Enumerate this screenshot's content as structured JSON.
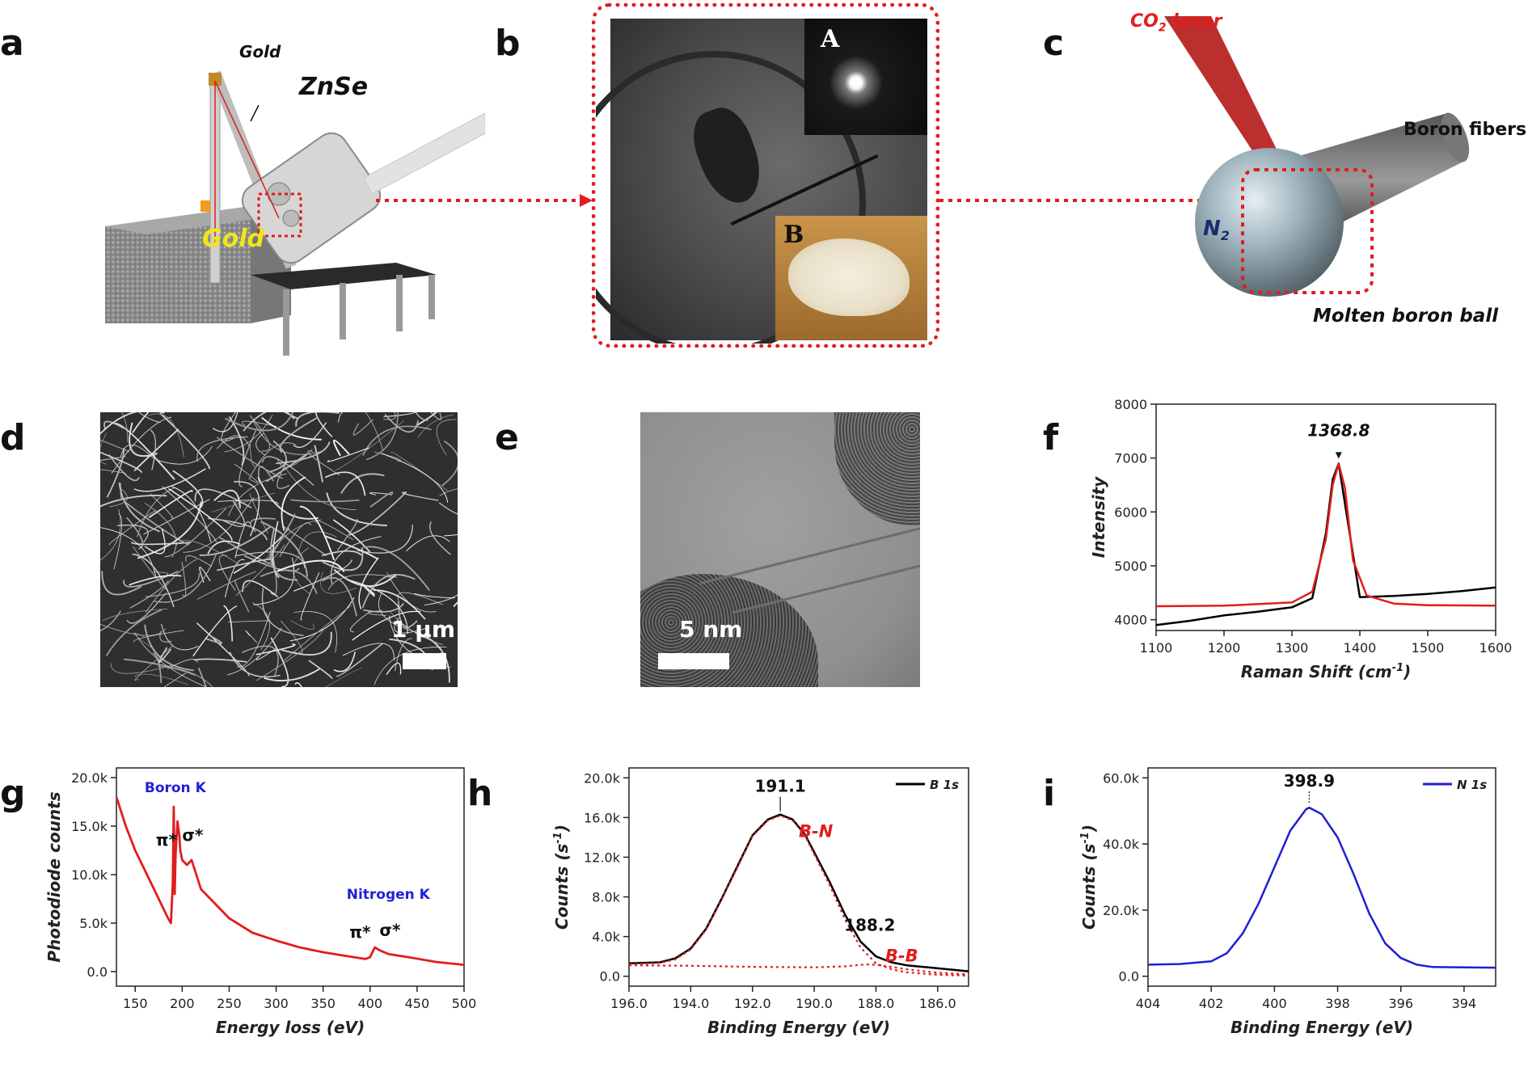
{
  "panels": {
    "a": {
      "label": "a",
      "gold_top": "Gold",
      "gold_box": "Gold",
      "znse": "ZnSe"
    },
    "b": {
      "label": "b",
      "inset_a": "A",
      "inset_b": "B"
    },
    "c": {
      "label": "c",
      "laser": "CO",
      "laser_sub": "2",
      "laser_tail": " laser",
      "n2": "N",
      "n2_sub": "2",
      "fibers": "Boron fibers",
      "ball": "Molten boron ball"
    },
    "d": {
      "label": "d",
      "scale": "1 µm"
    },
    "e": {
      "label": "e",
      "scale": "5 nm"
    },
    "f": {
      "label": "f"
    },
    "g": {
      "label": "g",
      "boron": "Boron K",
      "nitrogen": "Nitrogen K",
      "pi1": "π*",
      "sigma1": "σ*",
      "pi2": "π*",
      "sigma2": "σ*"
    },
    "h": {
      "label": "h",
      "peak1": "191.1",
      "peak1_bond": "B-N",
      "peak2": "188.2",
      "peak2_bond": "B-B"
    },
    "i": {
      "label": "i",
      "peak1": "398.9"
    }
  },
  "chart_data": [
    {
      "id": "f",
      "type": "line",
      "xlabel": "Raman Shift (cm-1)",
      "xlabel_main": "Raman Shift (cm",
      "xlabel_sup": "-1",
      "xlabel_close": ")",
      "ylabel": "Intensity",
      "xlim": [
        1100,
        1600
      ],
      "ylim": [
        3800,
        8000
      ],
      "xticks": [
        "1100",
        "1200",
        "1300",
        "1400",
        "1500",
        "1600"
      ],
      "yticks": [
        "4000",
        "5000",
        "6000",
        "7000",
        "8000"
      ],
      "annotation": "1368.8",
      "series": [
        {
          "color": "#000000",
          "x": [
            1100,
            1150,
            1200,
            1250,
            1300,
            1330,
            1350,
            1360,
            1368.8,
            1380,
            1400,
            1450,
            1500,
            1550,
            1600
          ],
          "y": [
            3900,
            3980,
            4080,
            4150,
            4230,
            4400,
            5600,
            6600,
            6900,
            6000,
            4420,
            4440,
            4480,
            4530,
            4600
          ]
        },
        {
          "color": "#e11d1d",
          "x": [
            1100,
            1200,
            1300,
            1330,
            1350,
            1360,
            1368.8,
            1378,
            1390,
            1410,
            1450,
            1500,
            1600
          ],
          "y": [
            4250,
            4260,
            4320,
            4520,
            5500,
            6500,
            6900,
            6450,
            5100,
            4450,
            4300,
            4270,
            4260
          ]
        }
      ]
    },
    {
      "id": "g",
      "type": "line",
      "xlabel": "Energy loss (eV)",
      "ylabel": "Photodiode counts",
      "xlim": [
        130,
        500
      ],
      "ylim": [
        -1500,
        21000
      ],
      "xticks": [
        "150",
        "200",
        "250",
        "300",
        "350",
        "400",
        "450",
        "500"
      ],
      "yticks": [
        "0.0",
        "5.0k",
        "10.0k",
        "15.0k",
        "20.0k"
      ],
      "series": [
        {
          "color": "#e11d1d",
          "x": [
            130,
            140,
            150,
            160,
            170,
            180,
            185,
            188,
            190,
            191,
            192,
            193,
            195,
            197,
            198,
            200,
            205,
            210,
            215,
            220,
            230,
            250,
            275,
            300,
            325,
            350,
            375,
            395,
            400,
            405,
            410,
            420,
            440,
            470,
            500
          ],
          "y": [
            18000,
            15000,
            12500,
            10500,
            8500,
            6500,
            5500,
            5000,
            9000,
            17000,
            8000,
            12000,
            15500,
            14000,
            12500,
            11500,
            11000,
            11500,
            10000,
            8500,
            7500,
            5500,
            4000,
            3200,
            2500,
            2000,
            1600,
            1300,
            1500,
            2500,
            2200,
            1800,
            1500,
            1000,
            700
          ]
        }
      ]
    },
    {
      "id": "h",
      "type": "line",
      "xlabel": "Binding Energy (eV)",
      "ylabel": "Counts (s-1)",
      "ylabel_main": "Counts (s",
      "ylabel_sup": "-1",
      "ylabel_close": ")",
      "xlim": [
        196,
        185
      ],
      "ylim": [
        -1000,
        21000
      ],
      "xticks": [
        "196.0",
        "194.0",
        "192.0",
        "190.0",
        "188.0",
        "186.0"
      ],
      "yticks": [
        "0.0",
        "4.0k",
        "8.0k",
        "12.0k",
        "16.0k",
        "20.0k"
      ],
      "legend": "B 1s",
      "legend_position": "top-right",
      "series": [
        {
          "name": "B 1s",
          "color": "#000000",
          "x": [
            196,
            195,
            194.5,
            194,
            193.5,
            193,
            192.5,
            192,
            191.5,
            191.1,
            190.7,
            190.3,
            190,
            189.5,
            189,
            188.5,
            188,
            187.5,
            187,
            186,
            185
          ],
          "y": [
            1300,
            1400,
            1800,
            2800,
            4800,
            7800,
            11000,
            14200,
            15800,
            16300,
            15800,
            14300,
            12500,
            9500,
            6200,
            3500,
            2000,
            1400,
            1100,
            800,
            500
          ]
        },
        {
          "name": "B-N fit",
          "color": "#e11d1d",
          "dashed": true,
          "x": [
            196,
            195,
            194.5,
            194,
            193.5,
            193,
            192.5,
            192,
            191.5,
            191.1,
            190.7,
            190.3,
            190,
            189.5,
            189,
            188.5,
            188,
            187.5,
            187,
            186,
            185
          ],
          "y": [
            1200,
            1350,
            1700,
            2700,
            4700,
            7700,
            10900,
            14100,
            15700,
            16200,
            15700,
            14200,
            12300,
            9200,
            5700,
            2900,
            1300,
            700,
            400,
            150,
            60
          ]
        },
        {
          "name": "B-B fit",
          "color": "#e11d1d",
          "dashed": true,
          "x": [
            196,
            194,
            192,
            190,
            189,
            188.5,
            188.2,
            188,
            187.5,
            187,
            186,
            185
          ],
          "y": [
            1100,
            1050,
            950,
            900,
            1000,
            1150,
            1200,
            1150,
            950,
            700,
            350,
            200
          ]
        }
      ]
    },
    {
      "id": "i",
      "type": "line",
      "xlabel": "Binding Energy (eV)",
      "ylabel": "Counts (s-1)",
      "ylabel_main": "Counts (s",
      "ylabel_sup": "-1",
      "ylabel_close": ")",
      "xlim": [
        404,
        393
      ],
      "ylim": [
        -3000,
        63000
      ],
      "xticks": [
        "404",
        "402",
        "400",
        "398",
        "396",
        "394"
      ],
      "yticks": [
        "0.0",
        "20.0k",
        "40.0k",
        "60.0k"
      ],
      "legend": "N 1s",
      "legend_position": "top-right",
      "series": [
        {
          "name": "N 1s",
          "color": "#1f1fd6",
          "x": [
            404,
            403,
            402,
            401.5,
            401,
            400.5,
            400,
            399.5,
            399,
            398.9,
            398.5,
            398,
            397.5,
            397,
            396.5,
            396,
            395.5,
            395,
            394,
            393
          ],
          "y": [
            3500,
            3700,
            4500,
            7000,
            13000,
            22000,
            33000,
            44000,
            50500,
            51000,
            49000,
            42000,
            31000,
            19000,
            10000,
            5500,
            3500,
            2800,
            2700,
            2600
          ]
        }
      ]
    }
  ]
}
